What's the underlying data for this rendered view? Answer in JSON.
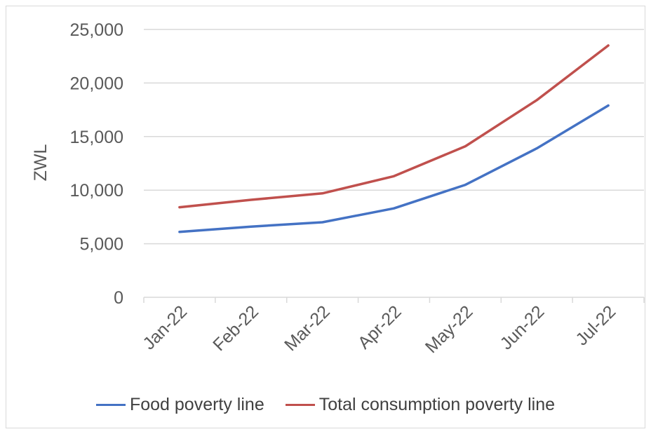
{
  "chart_data": {
    "type": "line",
    "categories": [
      "Jan-22",
      "Feb-22",
      "Mar-22",
      "Apr-22",
      "May-22",
      "Jun-22",
      "Jul-22"
    ],
    "series": [
      {
        "name": "Food poverty line",
        "color": "#4472c4",
        "values": [
          6100,
          6600,
          7000,
          8300,
          10500,
          13900,
          17900
        ]
      },
      {
        "name": "Total consumption poverty line",
        "color": "#c0504d",
        "values": [
          8400,
          9100,
          9700,
          11300,
          14100,
          18400,
          23500
        ]
      }
    ],
    "ylabel": "ZWL",
    "ylim": [
      0,
      25000
    ],
    "yticks": [
      "0",
      "5,000",
      "10,000",
      "15,000",
      "20,000",
      "25,000"
    ],
    "grid": true,
    "legend_position": "bottom"
  }
}
